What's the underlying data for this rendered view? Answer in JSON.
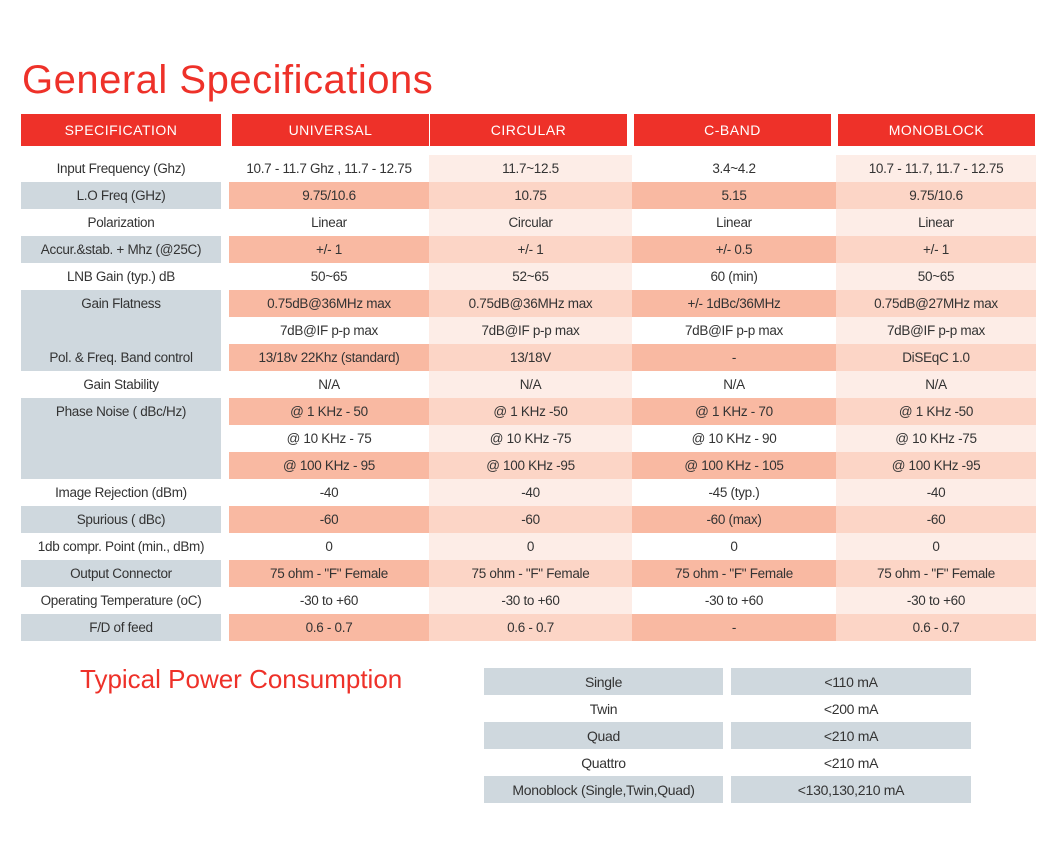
{
  "title": "General Specifications",
  "colors": {
    "accent": "#ee3129",
    "grey": "#cfd8de",
    "salmon_dark": "#f9b9a2",
    "salmon_light": "#fcd5c6",
    "pink_light": "#fdede7"
  },
  "headers": [
    "SPECIFICATION",
    "UNIVERSAL",
    "CIRCULAR",
    "C-BAND",
    "MONOBLOCK"
  ],
  "spec_labels": [
    {
      "label": "Input Frequency (Ghz)",
      "span": 1
    },
    {
      "label": "L.O Freq (GHz)",
      "span": 1
    },
    {
      "label": "Polarization",
      "span": 1
    },
    {
      "label": "Accur.&stab. + Mhz (@25C)",
      "span": 1
    },
    {
      "label": "LNB Gain (typ.) dB",
      "span": 1
    },
    {
      "label": "Gain Flatness",
      "span": 2
    },
    {
      "label": "Pol. & Freq. Band control",
      "span": 1
    },
    {
      "label": "Gain Stability",
      "span": 1
    },
    {
      "label": "Phase Noise ( dBc/Hz)",
      "span": 3
    },
    {
      "label": "Image Rejection (dBm)",
      "span": 1
    },
    {
      "label": "Spurious ( dBc)",
      "span": 1
    },
    {
      "label": "1db compr. Point (min., dBm)",
      "span": 1
    },
    {
      "label": "Output Connector",
      "span": 1
    },
    {
      "label": "Operating Temperature (oC)",
      "span": 1
    },
    {
      "label": "F/D of feed",
      "span": 1
    }
  ],
  "rows": [
    [
      "10.7 - 11.7 Ghz , 11.7 - 12.75",
      "11.7~12.5",
      "3.4~4.2",
      "10.7 - 11.7, 11.7 - 12.75"
    ],
    [
      "9.75/10.6",
      "10.75",
      "5.15",
      "9.75/10.6"
    ],
    [
      "Linear",
      "Circular",
      "Linear",
      "Linear"
    ],
    [
      "+/- 1",
      "+/- 1",
      "+/- 0.5",
      "+/- 1"
    ],
    [
      "50~65",
      "52~65",
      "60 (min)",
      "50~65"
    ],
    [
      "0.75dB@36MHz max",
      "0.75dB@36MHz max",
      "+/- 1dBc/36MHz",
      "0.75dB@27MHz max"
    ],
    [
      "7dB@IF p-p max",
      "7dB@IF p-p max",
      "7dB@IF p-p max",
      "7dB@IF p-p max"
    ],
    [
      "13/18v 22Khz (standard)",
      "13/18V",
      "-",
      "DiSEqC 1.0"
    ],
    [
      "N/A",
      "N/A",
      "N/A",
      "N/A"
    ],
    [
      "@ 1 KHz - 50",
      "@ 1 KHz -50",
      "@ 1 KHz - 70",
      "@ 1 KHz -50"
    ],
    [
      "@ 10 KHz - 75",
      "@ 10 KHz -75",
      "@ 10 KHz - 90",
      "@ 10 KHz -75"
    ],
    [
      "@ 100 KHz - 95",
      "@ 100 KHz -95",
      "@ 100 KHz - 105",
      "@ 100 KHz -95"
    ],
    [
      "-40",
      "-40",
      "-45 (typ.)",
      "-40"
    ],
    [
      "-60",
      "-60",
      "-60 (max)",
      "-60"
    ],
    [
      "0",
      "0",
      "0",
      "0"
    ],
    [
      "75 ohm - \"F\" Female",
      "75 ohm - \"F\" Female",
      "75 ohm - \"F\" Female",
      "75 ohm - \"F\" Female"
    ],
    [
      "-30 to +60",
      "-30 to +60",
      "-30 to +60",
      "-30 to +60"
    ],
    [
      "0.6 - 0.7",
      "0.6 - 0.7",
      "-",
      "0.6 - 0.7"
    ]
  ],
  "power": {
    "title": "Typical Power Consumption",
    "rows": [
      [
        "Single",
        "<110 mA"
      ],
      [
        "Twin",
        "<200 mA"
      ],
      [
        "Quad",
        "<210 mA"
      ],
      [
        "Quattro",
        "<210 mA"
      ],
      [
        "Monoblock (Single,Twin,Quad)",
        "<130,130,210 mA"
      ]
    ]
  }
}
